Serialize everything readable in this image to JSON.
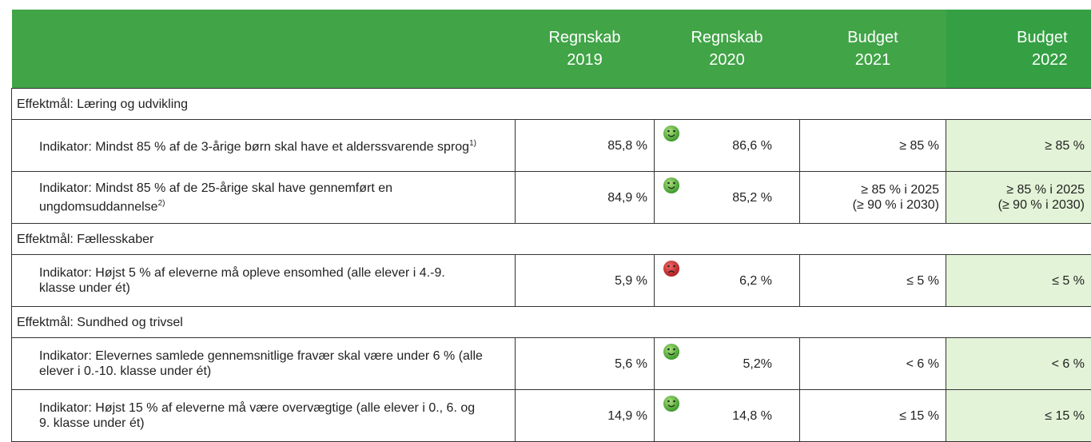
{
  "header": {
    "columns": [
      [
        "Regnskab",
        "2019"
      ],
      [
        "Regnskab",
        "2020"
      ],
      [
        "Budget",
        "2021"
      ],
      [
        "Budget",
        "2022"
      ]
    ]
  },
  "sections": [
    {
      "title": "Effektmål: Læring og udvikling",
      "rows": [
        {
          "indicator": "Indikator: Mindst 85 % af de 3-årige børn skal have et alderssvarende sprog",
          "note": "1)",
          "r2019": "85,8 %",
          "r2020": "86,6 %",
          "b2021": [
            "≥ 85 %"
          ],
          "b2022": [
            "≥ 85 %"
          ]
        },
        {
          "indicator": "Indikator: Mindst 85 % af de 25-årige skal have gennemført en ungdomsuddannelse",
          "note": "2)",
          "r2019": "84,9 %",
          "r2020": "85,2 %",
          "b2021": [
            "≥ 85 % i 2025",
            "(≥ 90 % i 2030)"
          ],
          "b2022": [
            "≥ 85 % i 2025",
            "(≥ 90 % i 2030)"
          ]
        }
      ]
    },
    {
      "title": "Effektmål: Fællesskaber",
      "rows": [
        {
          "indicator": "Indikator: Højst 5 % af eleverne må opleve ensomhed (alle elever i 4.-9. klasse under ét)",
          "r2019": "5,9 %",
          "r2020": "6,2 %",
          "b2021": [
            "≤ 5 %"
          ],
          "b2022": [
            "≤ 5 %"
          ]
        }
      ]
    },
    {
      "title": "Effektmål: Sundhed og trivsel",
      "rows": [
        {
          "indicator": "Indikator: Elevernes samlede gennemsnitlige fravær skal være under 6 % (alle elever i 0.-10. klasse under ét)",
          "r2019": "5,6 %",
          "r2020": "5,2%",
          "b2021": [
            "< 6 %"
          ],
          "b2022": [
            "< 6 %"
          ]
        },
        {
          "indicator": "Indikator: Højst 15 % af eleverne må være overvægtige (alle elever i 0., 6. og 9. klasse under ét)",
          "r2019": "14,9 %",
          "r2020": "14,8 %",
          "b2021": [
            "≤ 15 %"
          ],
          "b2022": [
            "≤ 15 %"
          ]
        }
      ]
    }
  ]
}
